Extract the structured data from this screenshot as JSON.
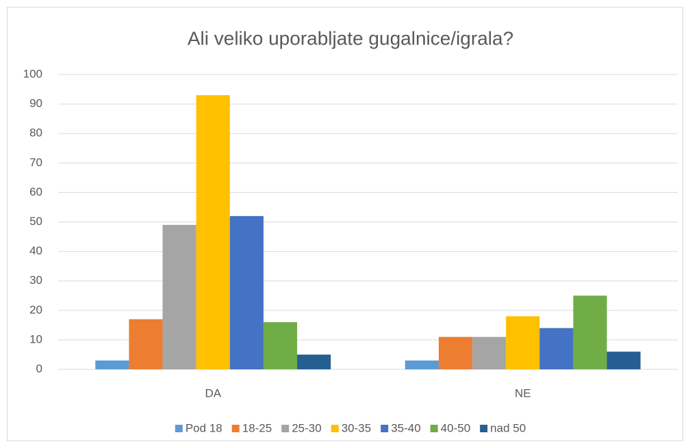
{
  "chart_data": {
    "type": "bar",
    "title": "Ali veliko uporabljate gugalnice/igrala?",
    "categories": [
      "DA",
      "NE"
    ],
    "series": [
      {
        "name": "Pod 18",
        "color": "#5b9bd5",
        "values": [
          3,
          3
        ]
      },
      {
        "name": "18-25",
        "color": "#ed7d31",
        "values": [
          17,
          11
        ]
      },
      {
        "name": "25-30",
        "color": "#a5a5a5",
        "values": [
          49,
          11
        ]
      },
      {
        "name": "30-35",
        "color": "#ffc000",
        "values": [
          93,
          18
        ]
      },
      {
        "name": "35-40",
        "color": "#4472c4",
        "values": [
          52,
          14
        ]
      },
      {
        "name": "40-50",
        "color": "#70ad47",
        "values": [
          16,
          25
        ]
      },
      {
        "name": "nad 50",
        "color": "#255e91",
        "values": [
          5,
          6
        ]
      }
    ],
    "ylim": [
      0,
      100
    ],
    "yticks": [
      0,
      10,
      20,
      30,
      40,
      50,
      60,
      70,
      80,
      90,
      100
    ],
    "grid": true,
    "legend": "bottom"
  }
}
